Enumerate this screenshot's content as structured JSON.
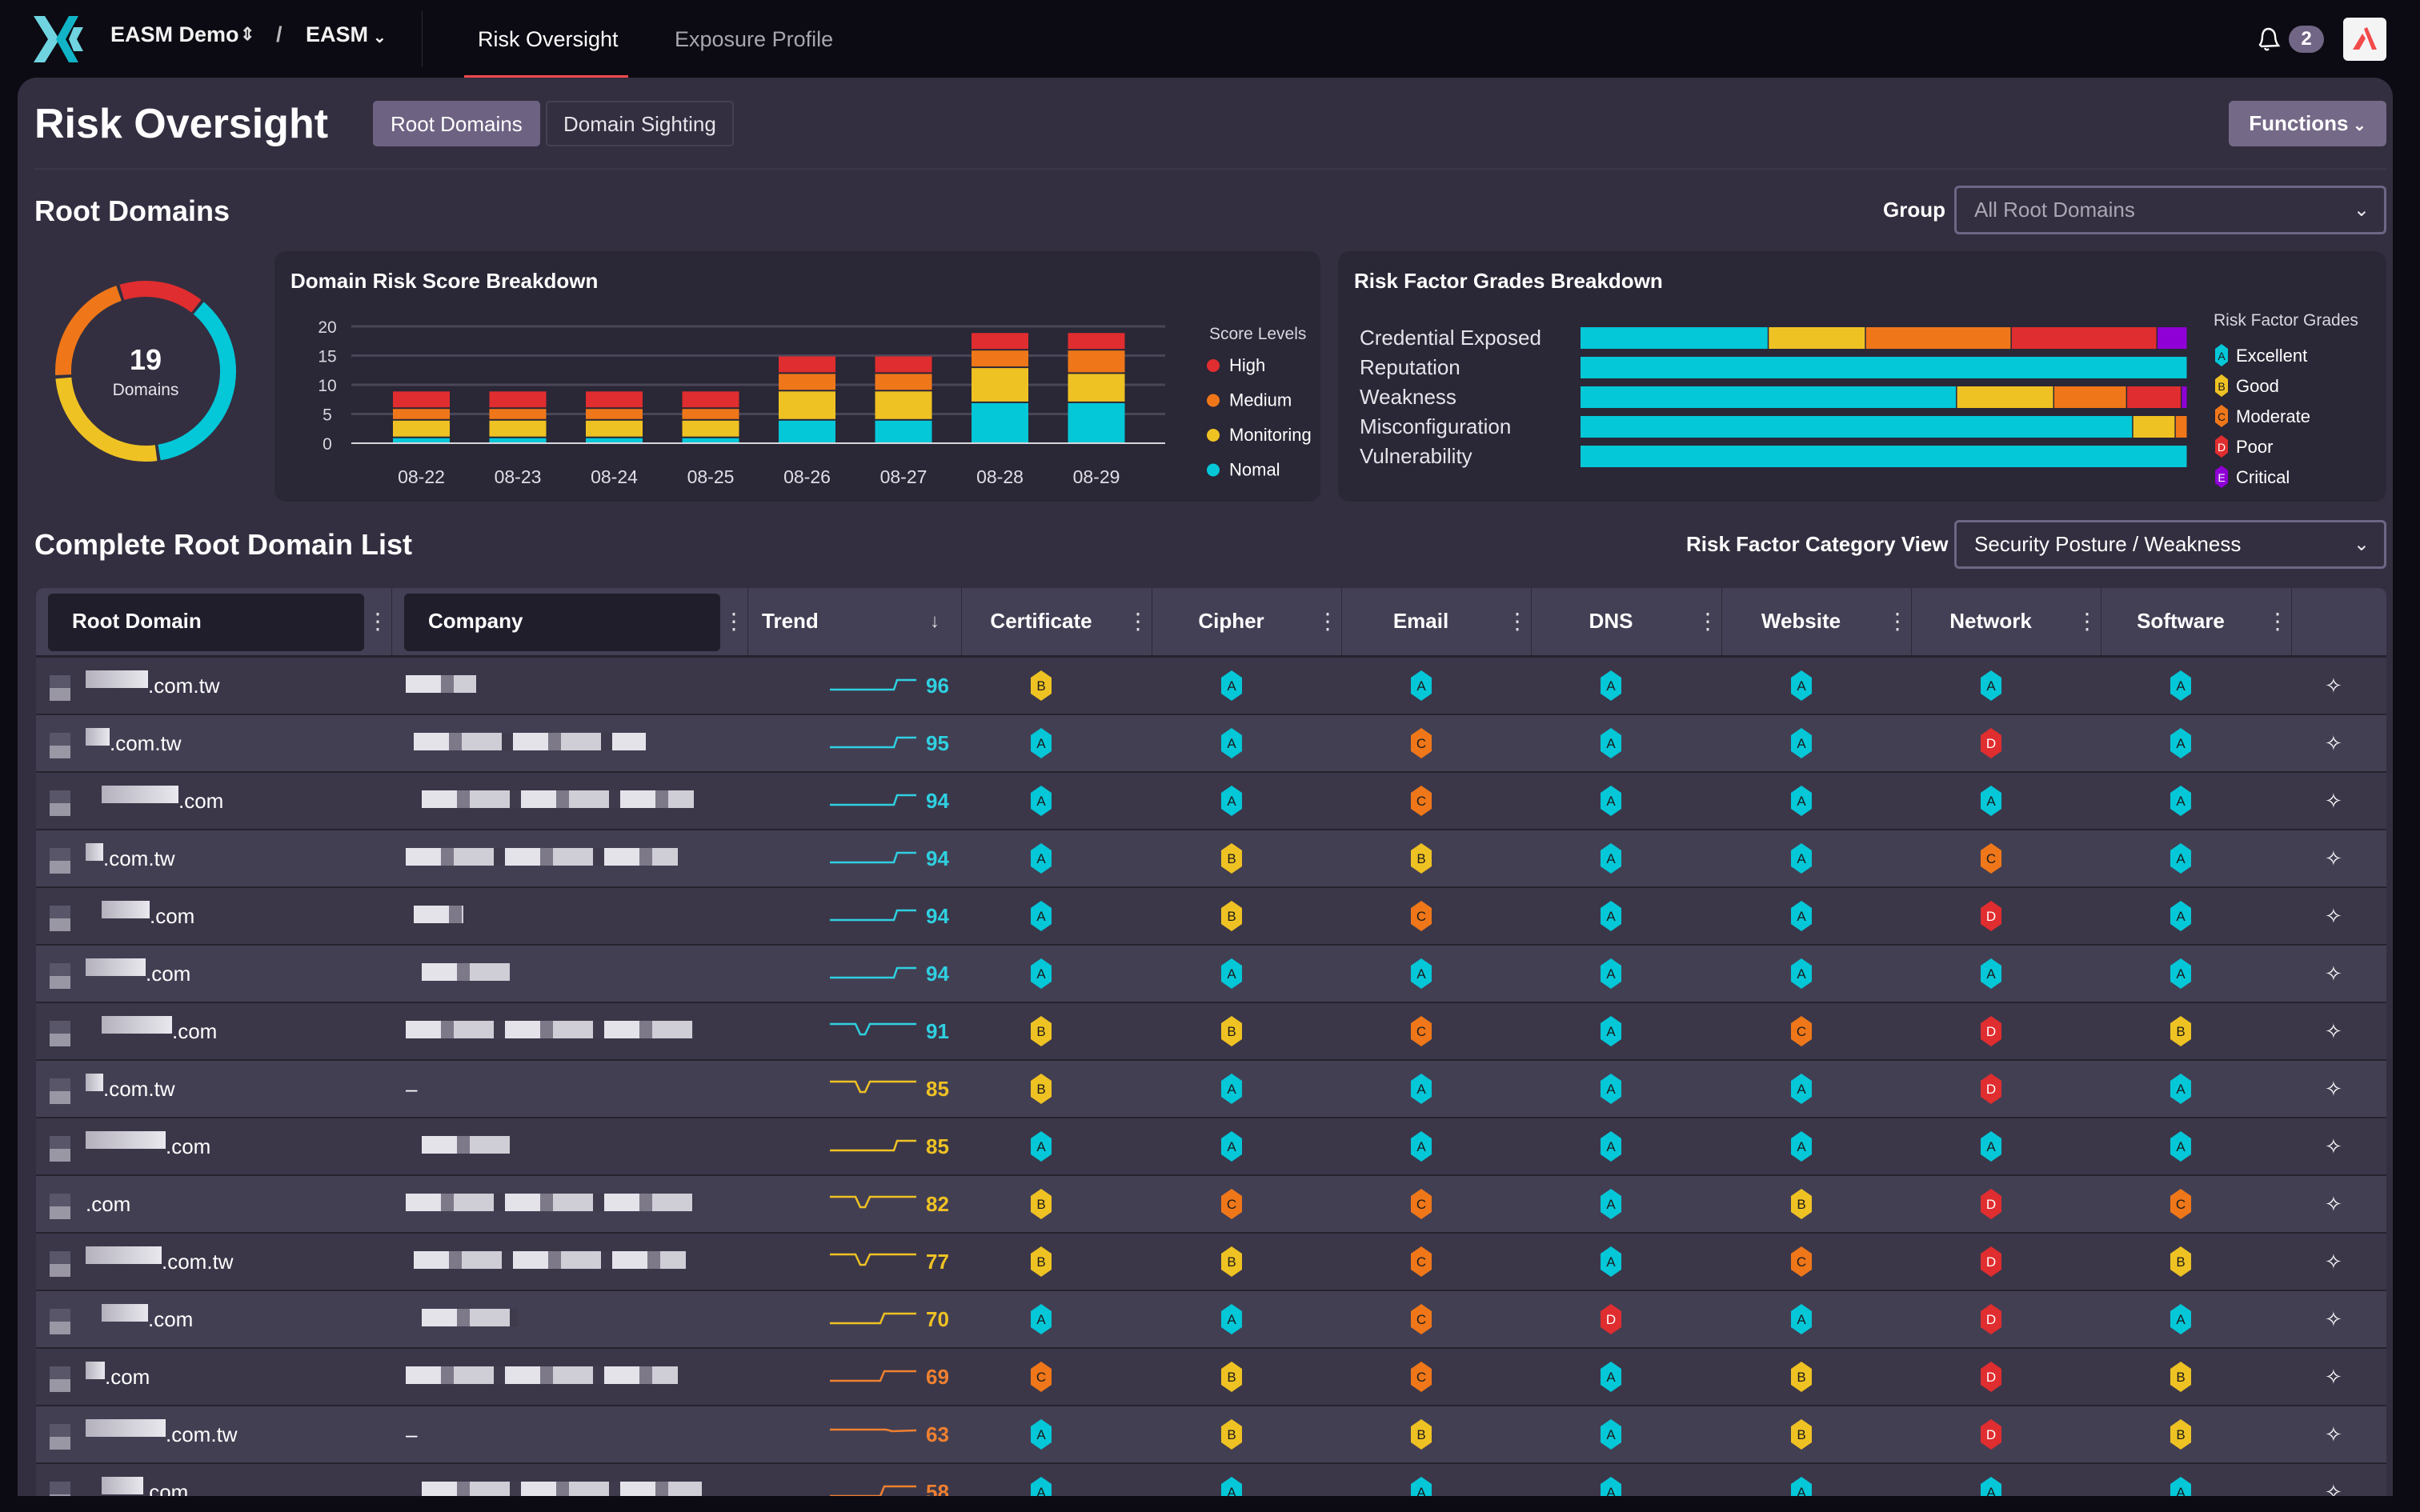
{
  "nav": {
    "workspace": "EASM Demo",
    "separator": "/",
    "product": "EASM",
    "tabs": [
      {
        "label": "Risk Oversight",
        "active": true
      },
      {
        "label": "Exposure Profile",
        "active": false
      }
    ],
    "notification_count": "2"
  },
  "page": {
    "title": "Risk Oversight",
    "segments": [
      {
        "label": "Root Domains",
        "active": true
      },
      {
        "label": "Domain Sighting",
        "active": false
      }
    ],
    "functions_label": "Functions"
  },
  "root_domains": {
    "heading": "Root Domains",
    "group_label": "Group",
    "group_value": "All Root Domains",
    "donut": {
      "count": "19",
      "label": "Domains"
    }
  },
  "colors": {
    "high": "#e02d2f",
    "medium": "#ef7719",
    "monitoring": "#efc223",
    "normal": "#04c7d8",
    "critical": "#8f00d6",
    "accent": "#f0484d"
  },
  "chart_data": [
    {
      "type": "bar",
      "stacked": true,
      "title": "Domain Risk Score Breakdown",
      "categories": [
        "08-22",
        "08-23",
        "08-24",
        "08-25",
        "08-26",
        "08-27",
        "08-28",
        "08-29"
      ],
      "ylim": [
        0,
        20
      ],
      "yticks": [
        "0",
        "5",
        "10",
        "15",
        "20"
      ],
      "grid": true,
      "legend_title": "Score Levels",
      "legend_position": "right",
      "series": [
        {
          "name": "Nomal",
          "color": "#04c7d8",
          "values": [
            1,
            1,
            1,
            1,
            4,
            4,
            7,
            7
          ]
        },
        {
          "name": "Monitoring",
          "color": "#efc223",
          "values": [
            3,
            3,
            3,
            3,
            5,
            5,
            6,
            5
          ]
        },
        {
          "name": "Medium",
          "color": "#ef7719",
          "values": [
            2,
            2,
            2,
            2,
            3,
            3,
            3,
            4
          ]
        },
        {
          "name": "High",
          "color": "#e02d2f",
          "values": [
            3,
            3,
            3,
            3,
            3,
            3,
            3,
            3
          ]
        }
      ],
      "legend_order": [
        "High",
        "Medium",
        "Monitoring",
        "Nomal"
      ]
    },
    {
      "type": "bar",
      "orientation": "horizontal",
      "stacked_percent": true,
      "title": "Risk Factor Grades Breakdown",
      "categories": [
        "Credential Exposed",
        "Reputation",
        "Weakness",
        "Misconfiguration",
        "Vulnerability"
      ],
      "legend_title": "Risk Factor Grades",
      "legend_position": "right",
      "series": [
        {
          "name": "Excellent",
          "grade": "A",
          "color": "#04c7d8",
          "values": [
            31,
            100,
            62,
            91,
            100
          ]
        },
        {
          "name": "Good",
          "grade": "B",
          "color": "#efc223",
          "values": [
            16,
            0,
            16,
            7,
            0
          ]
        },
        {
          "name": "Moderate",
          "grade": "C",
          "color": "#ef7719",
          "values": [
            24,
            0,
            12,
            2,
            0
          ]
        },
        {
          "name": "Poor",
          "grade": "D",
          "color": "#e02d2f",
          "values": [
            24,
            0,
            9,
            0,
            0
          ]
        },
        {
          "name": "Critical",
          "grade": "E",
          "color": "#8f00d6",
          "values": [
            5,
            0,
            1,
            0,
            0
          ]
        }
      ]
    }
  ],
  "list": {
    "heading": "Complete Root Domain List",
    "view_label": "Risk Factor Category View",
    "view_value": "Security Posture / Weakness",
    "columns": [
      "Root Domain",
      "Company",
      "Trend",
      "Certificate",
      "Cipher",
      "Email",
      "DNS",
      "Website",
      "Network",
      "Software"
    ],
    "sort_column": "Trend",
    "sort_direction": "descending",
    "rows": [
      {
        "domain": ".com.tw",
        "company": "",
        "trend": "step",
        "score": "96",
        "grades": [
          "B",
          "A",
          "A",
          "A",
          "A",
          "A",
          "A"
        ]
      },
      {
        "domain": ".com.tw",
        "company": "",
        "trend": "step",
        "score": "95",
        "grades": [
          "A",
          "A",
          "C",
          "A",
          "A",
          "D",
          "A"
        ]
      },
      {
        "domain": ".com",
        "company": "",
        "trend": "step",
        "score": "94",
        "grades": [
          "A",
          "A",
          "C",
          "A",
          "A",
          "A",
          "A"
        ]
      },
      {
        "domain": ".com.tw",
        "company": "",
        "trend": "step",
        "score": "94",
        "grades": [
          "A",
          "B",
          "B",
          "A",
          "A",
          "C",
          "A"
        ]
      },
      {
        "domain": ".com",
        "company": "",
        "trend": "step",
        "score": "94",
        "grades": [
          "A",
          "B",
          "C",
          "A",
          "A",
          "D",
          "A"
        ]
      },
      {
        "domain": ".com",
        "company": "",
        "trend": "step",
        "score": "94",
        "grades": [
          "A",
          "A",
          "A",
          "A",
          "A",
          "A",
          "A"
        ]
      },
      {
        "domain": ".com",
        "company": "",
        "trend": "dip",
        "score": "91",
        "grades": [
          "B",
          "B",
          "C",
          "A",
          "C",
          "D",
          "B"
        ]
      },
      {
        "domain": ".com.tw",
        "company": "–",
        "trend": "dip",
        "score": "85",
        "grades": [
          "B",
          "A",
          "A",
          "A",
          "A",
          "D",
          "A"
        ]
      },
      {
        "domain": ".com",
        "company": "",
        "trend": "step",
        "score": "85",
        "grades": [
          "A",
          "A",
          "A",
          "A",
          "A",
          "A",
          "A"
        ]
      },
      {
        "domain": ".com",
        "company": "",
        "trend": "dip",
        "score": "82",
        "grades": [
          "B",
          "C",
          "C",
          "A",
          "B",
          "D",
          "C"
        ]
      },
      {
        "domain": ".com.tw",
        "company": "",
        "trend": "dip",
        "score": "77",
        "grades": [
          "B",
          "B",
          "C",
          "A",
          "C",
          "D",
          "B"
        ]
      },
      {
        "domain": ".com",
        "company": "",
        "trend": "step-early",
        "score": "70",
        "grades": [
          "A",
          "A",
          "C",
          "D",
          "A",
          "D",
          "A"
        ]
      },
      {
        "domain": ".com",
        "company": "",
        "trend": "step-early",
        "score": "69",
        "grades": [
          "C",
          "B",
          "C",
          "A",
          "B",
          "D",
          "B"
        ]
      },
      {
        "domain": ".com.tw",
        "company": "–",
        "trend": "flat",
        "score": "63",
        "grades": [
          "A",
          "B",
          "B",
          "A",
          "B",
          "D",
          "B"
        ]
      },
      {
        "domain": ".com",
        "company": "",
        "trend": "step-early",
        "score": "58",
        "grades": [
          "A",
          "A",
          "A",
          "A",
          "A",
          "A",
          "A"
        ]
      }
    ]
  }
}
